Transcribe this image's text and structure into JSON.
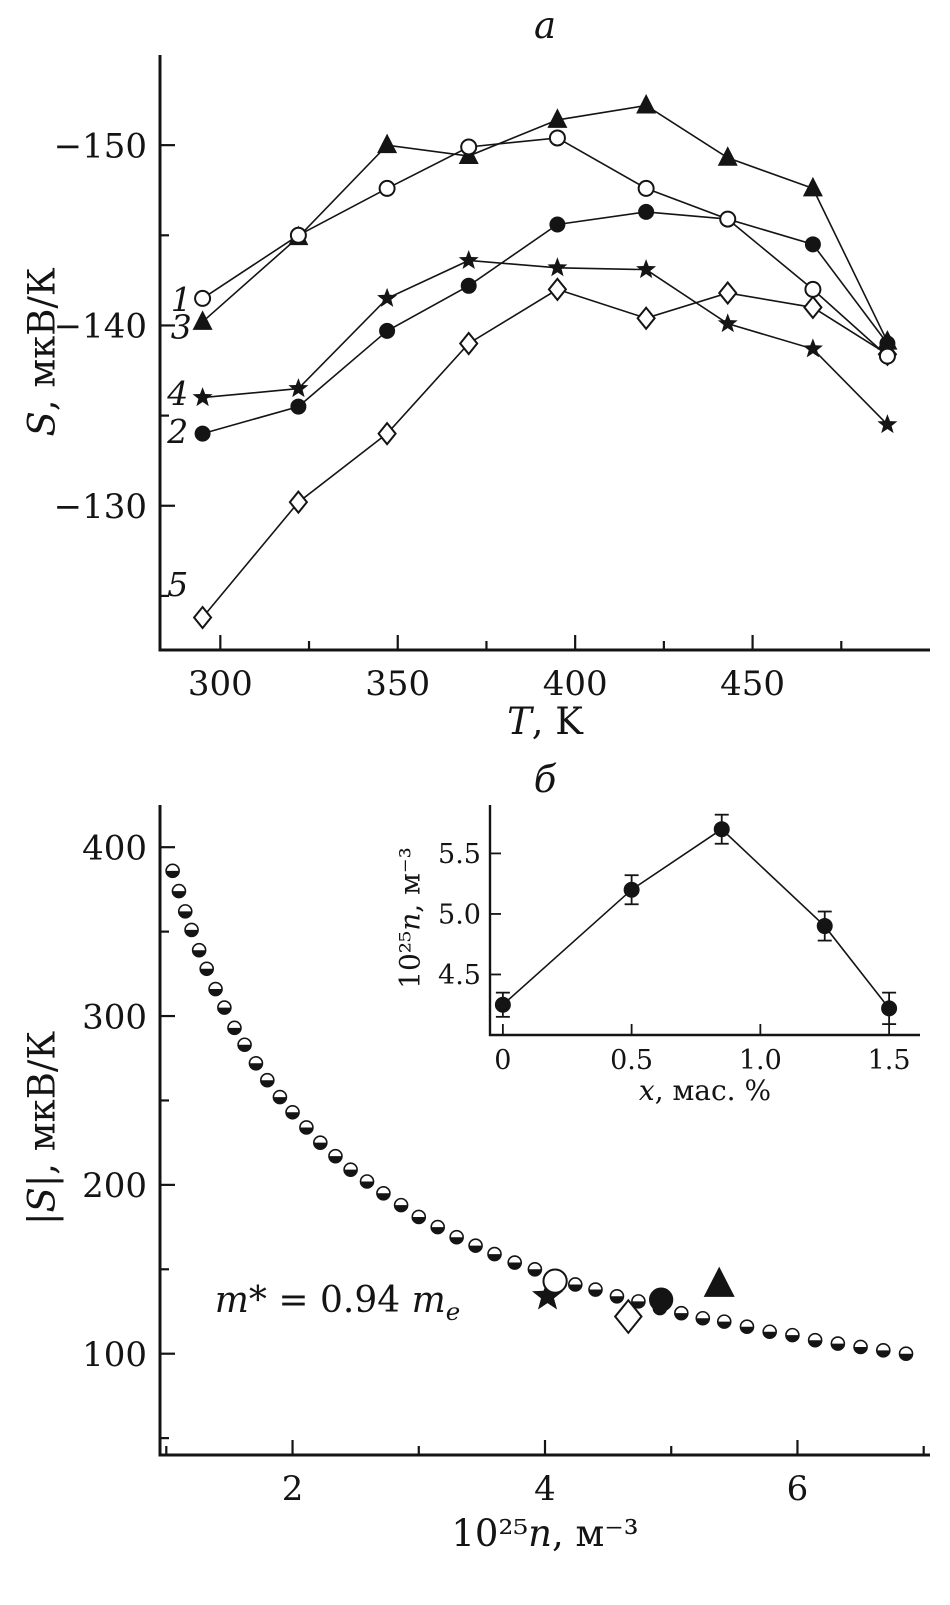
{
  "colors": {
    "background": "#ffffff",
    "ink": "#141414"
  },
  "chart_data": [
    {
      "id": "panel-a",
      "type": "line",
      "title": "a",
      "ylabel_parts": {
        "var": "S",
        "rest": ", мкВ/К"
      },
      "xlabel_parts": {
        "var": "T",
        "rest": ", K"
      },
      "xlim": [
        283,
        500
      ],
      "ylim_top_to_bottom": [
        -155,
        -122
      ],
      "xticks": [
        {
          "v": 300,
          "t": "300"
        },
        {
          "v": 350,
          "t": "350"
        },
        {
          "v": 400,
          "t": "400"
        },
        {
          "v": 450,
          "t": "450"
        }
      ],
      "xminor": [
        325,
        375,
        425,
        475
      ],
      "yticks": [
        {
          "v": -150,
          "t": "−150"
        },
        {
          "v": -140,
          "t": "−140"
        },
        {
          "v": -130,
          "t": "−130"
        }
      ],
      "yminor": [
        -145,
        -135,
        -125
      ],
      "x_values_T_K": [
        295,
        322,
        347,
        370,
        395,
        420,
        443,
        467,
        488
      ],
      "series": [
        {
          "name": "5",
          "marker": "diamond-open",
          "label_at": [
            288,
            -125.6
          ],
          "values": [
            -123.8,
            -130.2,
            -134.0,
            -139.0,
            -142.0,
            -140.4,
            -141.8,
            -141.0,
            -138.4
          ]
        },
        {
          "name": "3",
          "marker": "triangle-filled",
          "label_at": [
            289,
            -139.9
          ],
          "values": [
            -140.2,
            -144.9,
            -150.0,
            -149.4,
            -151.4,
            -152.2,
            -149.3,
            -147.6,
            -139.1
          ]
        },
        {
          "name": "2",
          "marker": "circle-filled",
          "label_at": [
            288,
            -134.1
          ],
          "values": [
            -134.0,
            -135.5,
            -139.7,
            -142.2,
            -145.6,
            -146.3,
            -145.9,
            -144.5,
            -139.0
          ]
        },
        {
          "name": "4",
          "marker": "star-filled",
          "label_at": [
            288,
            -136.2
          ],
          "values": [
            -136.0,
            -136.5,
            -141.5,
            -143.6,
            -143.2,
            -143.1,
            -140.1,
            -138.7,
            -134.5
          ]
        },
        {
          "name": "1",
          "marker": "circle-open",
          "label_at": [
            289,
            -141.4
          ],
          "values": [
            -141.5,
            -145.0,
            -147.6,
            -149.9,
            -150.4,
            -147.6,
            -145.9,
            -142.0,
            -138.3
          ]
        }
      ]
    },
    {
      "id": "panel-b",
      "type": "scatter",
      "title": "б",
      "ylabel_parts": {
        "pre": "|",
        "var": "S",
        "rest": "|, мкВ/К"
      },
      "xlabel_parts": {
        "pre": "10²⁵",
        "var": "n",
        "rest": ", м⁻³"
      },
      "annotation": {
        "var1": "m*",
        "mid": " = 0.94 ",
        "var2": "m",
        "sub": "e"
      },
      "xlim": [
        0.95,
        7.05
      ],
      "ylim_top_to_bottom": [
        425,
        40
      ],
      "xticks": [
        {
          "v": 2,
          "t": "2"
        },
        {
          "v": 4,
          "t": "4"
        },
        {
          "v": 6,
          "t": "6"
        }
      ],
      "xminor": [
        1,
        3,
        5,
        7
      ],
      "yticks": [
        {
          "v": 400,
          "t": "400"
        },
        {
          "v": 300,
          "t": "300"
        },
        {
          "v": 200,
          "t": "200"
        },
        {
          "v": 100,
          "t": "100"
        }
      ],
      "yminor": [
        350,
        250,
        150,
        50
      ],
      "curve": {
        "marker": "circle-half",
        "n": [
          1.05,
          1.1,
          1.15,
          1.2,
          1.26,
          1.32,
          1.39,
          1.46,
          1.54,
          1.62,
          1.71,
          1.8,
          1.9,
          2.0,
          2.11,
          2.22,
          2.34,
          2.46,
          2.59,
          2.72,
          2.86,
          3.0,
          3.15,
          3.3,
          3.45,
          3.6,
          3.76,
          3.92,
          4.08,
          4.24,
          4.4,
          4.57,
          4.74,
          4.91,
          5.08,
          5.25,
          5.42,
          5.6,
          5.78,
          5.96,
          6.14,
          6.32,
          6.5,
          6.68,
          6.86
        ],
        "S": [
          386,
          374,
          362,
          351,
          339,
          328,
          316,
          305,
          293,
          283,
          272,
          262,
          252,
          243,
          234,
          225,
          217,
          209,
          202,
          195,
          188,
          181,
          175,
          169,
          164,
          159,
          154,
          150,
          145,
          141,
          138,
          134,
          131,
          127,
          124,
          121,
          119,
          116,
          113,
          111,
          108,
          106,
          104,
          102,
          100
        ]
      },
      "samples": [
        {
          "marker": "star-filled",
          "n": 4.02,
          "S": 134
        },
        {
          "marker": "circle-open",
          "n": 4.08,
          "S": 143
        },
        {
          "marker": "diamond-open",
          "n": 4.66,
          "S": 122
        },
        {
          "marker": "circle-filled",
          "n": 4.92,
          "S": 132
        },
        {
          "marker": "triangle-filled",
          "n": 5.38,
          "S": 141
        }
      ]
    },
    {
      "id": "inset",
      "type": "line-error",
      "ylabel_parts": {
        "pre": "10²⁵",
        "var": "n",
        "rest": ", м⁻³"
      },
      "xlabel_parts": {
        "var": "x",
        "rest": ", мас. %"
      },
      "xlim": [
        -0.05,
        1.62
      ],
      "ylim_top_to_bottom": [
        5.9,
        4.0
      ],
      "xticks": [
        {
          "v": 0,
          "t": "0"
        },
        {
          "v": 0.5,
          "t": "0.5"
        },
        {
          "v": 1.0,
          "t": "1.0"
        },
        {
          "v": 1.5,
          "t": "1.5"
        }
      ],
      "yticks": [
        {
          "v": 4.5,
          "t": "4.5"
        },
        {
          "v": 5.0,
          "t": "5.0"
        },
        {
          "v": 5.5,
          "t": "5.5"
        }
      ],
      "points": {
        "x": [
          0,
          0.5,
          0.85,
          1.25,
          1.5
        ],
        "y": [
          4.25,
          5.2,
          5.7,
          4.9,
          4.22
        ],
        "yerr": [
          0.1,
          0.12,
          0.12,
          0.12,
          0.13
        ]
      }
    }
  ]
}
